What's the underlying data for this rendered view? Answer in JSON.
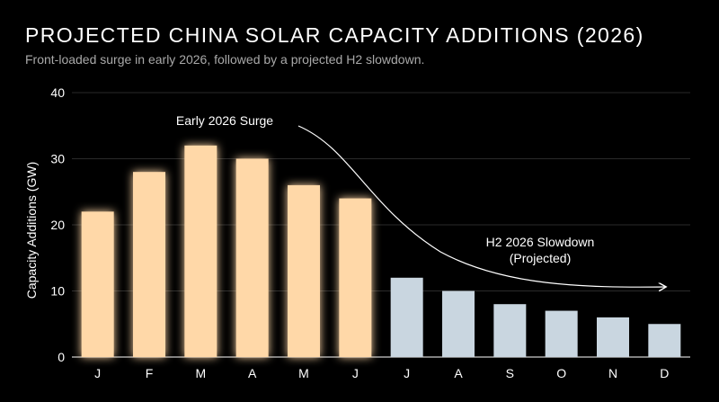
{
  "chart_data": {
    "type": "bar",
    "title": "PROJECTED CHINA SOLAR CAPACITY ADDITIONS (2026)",
    "subtitle": "Front-loaded surge in early 2026, followed by a projected H2 slowdown.",
    "xlabel": "",
    "ylabel": "Capacity Additions (GW)",
    "ylim": [
      0,
      40
    ],
    "yticks": [
      0,
      10,
      20,
      30,
      40
    ],
    "grid": true,
    "categories": [
      "J",
      "F",
      "M",
      "A",
      "M",
      "J",
      "J",
      "A",
      "S",
      "O",
      "N",
      "D"
    ],
    "series": [
      {
        "values": [
          22,
          28,
          32,
          30,
          26,
          24,
          12,
          10,
          8,
          7,
          6,
          5
        ]
      }
    ],
    "colors": {
      "h1": "#ffd8a8",
      "h1_glow": "#ff9a3c",
      "h2": "#c9d6e0",
      "grid": "#2a2a2a",
      "axis": "#cccccc"
    },
    "annotations": {
      "surge": "Early 2026 Surge",
      "slowdown_line1": "H2 2026 Slowdown",
      "slowdown_line2": "(Projected)"
    }
  }
}
